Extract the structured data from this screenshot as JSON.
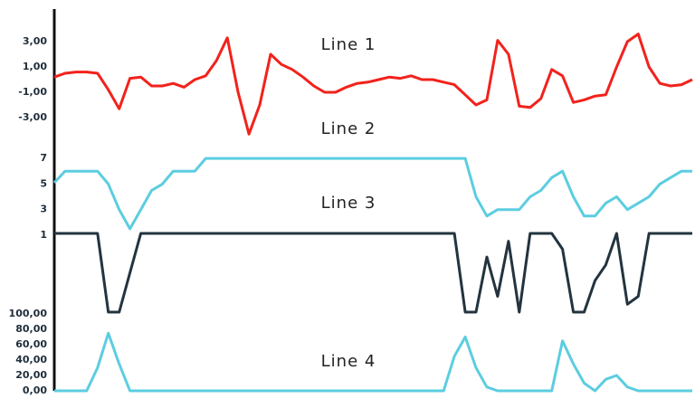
{
  "chart_data": [
    {
      "type": "line",
      "title": "Line 1",
      "color": "#f2221c",
      "values": [
        0.2,
        0.5,
        0.6,
        0.6,
        0.5,
        -0.8,
        -2.3,
        0.1,
        0.2,
        -0.5,
        -0.5,
        -0.3,
        -0.6,
        0.0,
        0.3,
        1.5,
        3.3,
        -1.0,
        -4.3,
        -2.0,
        2.0,
        1.2,
        0.8,
        0.2,
        -0.5,
        -1.0,
        -1.0,
        -0.6,
        -0.3,
        -0.2,
        0.0,
        0.2,
        0.1,
        0.3,
        0.0,
        0.0,
        -0.2,
        -0.4,
        -1.2,
        -2.0,
        -1.6,
        3.1,
        2.0,
        -2.1,
        -2.2,
        -1.5,
        0.8,
        0.3,
        -1.8,
        -1.6,
        -1.3,
        -1.2,
        1.0,
        3.0,
        3.6,
        1.0,
        -0.3,
        -0.5,
        -0.4,
        0.0
      ],
      "ylim": [
        -4.5,
        4.5
      ],
      "yticks": [
        {
          "value": 3,
          "label": "3,00"
        },
        {
          "value": 1,
          "label": "1,00"
        },
        {
          "value": -1,
          "label": "-1,00"
        },
        {
          "value": -3,
          "label": "-3,00"
        }
      ]
    },
    {
      "type": "line",
      "title": "Line 2",
      "color": "#5ccde0",
      "values": [
        5.1,
        6.0,
        6.0,
        6.0,
        6.0,
        5.0,
        3.0,
        1.5,
        3.0,
        4.5,
        5.0,
        6.0,
        6.0,
        6.0,
        7.0,
        7.0,
        7.0,
        7.0,
        7.0,
        7.0,
        7.0,
        7.0,
        7.0,
        7.0,
        7.0,
        7.0,
        7.0,
        7.0,
        7.0,
        7.0,
        7.0,
        7.0,
        7.0,
        7.0,
        7.0,
        7.0,
        7.0,
        7.0,
        7.0,
        4.0,
        2.5,
        3.0,
        3.0,
        3.0,
        4.0,
        4.5,
        5.5,
        6.0,
        4.0,
        2.5,
        2.5,
        3.5,
        4.0,
        3.0,
        3.5,
        4.0,
        5.0,
        5.5,
        6.0,
        6.0
      ],
      "ylim": [
        1,
        7.5
      ],
      "yticks": [
        7,
        5,
        3,
        1
      ]
    },
    {
      "type": "line",
      "title": "Line 3",
      "color": "#23343f",
      "values": [
        1,
        1,
        1,
        1,
        1,
        0,
        0,
        0.5,
        1,
        1,
        1,
        1,
        1,
        1,
        1,
        1,
        1,
        1,
        1,
        1,
        1,
        1,
        1,
        1,
        1,
        1,
        1,
        1,
        1,
        1,
        1,
        1,
        1,
        1,
        1,
        1,
        1,
        1,
        0,
        0,
        0.7,
        0.2,
        0.9,
        0,
        1,
        1,
        1,
        0.8,
        0,
        0,
        0.4,
        0.6,
        1,
        0.1,
        0.2,
        1,
        1,
        1,
        1,
        1
      ],
      "ylim": [
        0,
        1
      ]
    },
    {
      "type": "line",
      "title": "Line 4",
      "color": "#5ccde0",
      "values": [
        0,
        0,
        0,
        0,
        30,
        75,
        35,
        0,
        0,
        0,
        0,
        0,
        0,
        0,
        0,
        0,
        0,
        0,
        0,
        0,
        0,
        0,
        0,
        0,
        0,
        0,
        0,
        0,
        0,
        0,
        0,
        0,
        0,
        0,
        0,
        0,
        0,
        45,
        70,
        30,
        5,
        0,
        0,
        0,
        0,
        0,
        0,
        65,
        35,
        10,
        0,
        15,
        20,
        5,
        0,
        0,
        0,
        0,
        0,
        0
      ],
      "ylim": [
        0,
        100
      ],
      "yticks": [
        {
          "value": 100,
          "label": "100,00"
        },
        {
          "value": 80,
          "label": "80,00"
        },
        {
          "value": 60,
          "label": "60,00"
        },
        {
          "value": 40,
          "label": "40,00"
        },
        {
          "value": 20,
          "label": "20,00"
        },
        {
          "value": 0,
          "label": "0,00"
        }
      ]
    }
  ]
}
